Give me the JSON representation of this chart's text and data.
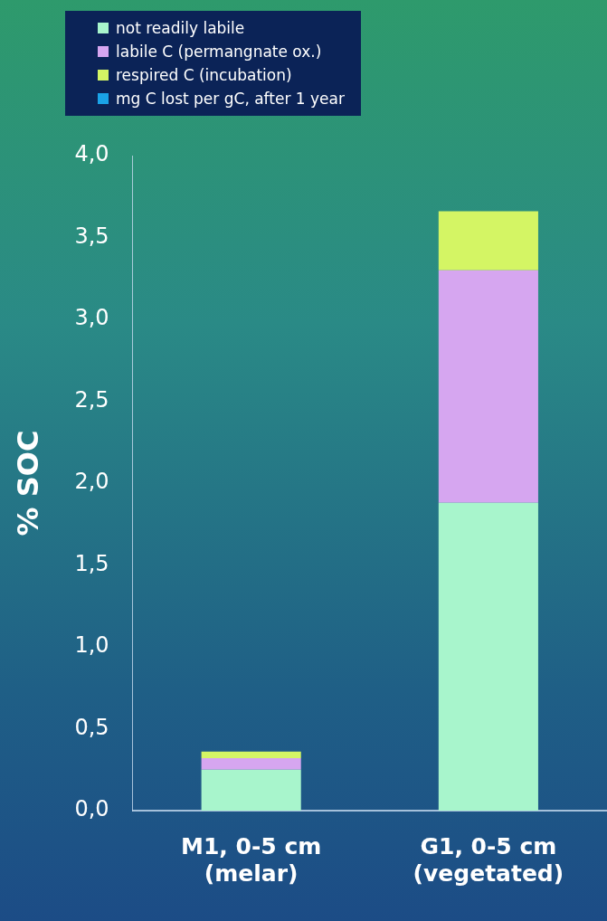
{
  "chart_data": {
    "type": "bar",
    "stacked": true,
    "ylabel": "% SOC",
    "categories": [
      "M1, 0-5 cm\n(melar)",
      "G1, 0-5 cm\n(vegetated)"
    ],
    "series": [
      {
        "name": "not readily labile",
        "color": "#a8f5cc",
        "values": [
          0.25,
          1.88
        ]
      },
      {
        "name": "labile C (permangnate ox.)",
        "color": "#d6a6f0",
        "values": [
          0.07,
          1.42
        ]
      },
      {
        "name": "respired C (incubation)",
        "color": "#d4f564",
        "values": [
          0.04,
          0.36
        ]
      },
      {
        "name": "mg C lost per gC, after 1 year",
        "color": "#1aa3e8",
        "values": [
          null,
          null
        ]
      }
    ],
    "ylim": [
      0,
      4
    ],
    "yticks": [
      {
        "value": 0,
        "label": "0,0"
      },
      {
        "value": 0.5,
        "label": "0,5"
      },
      {
        "value": 1,
        "label": "1,0"
      },
      {
        "value": 1.5,
        "label": "1,5"
      },
      {
        "value": 2,
        "label": "2,0"
      },
      {
        "value": 2.5,
        "label": "2,5"
      },
      {
        "value": 3,
        "label": "3,0"
      },
      {
        "value": 3.5,
        "label": "3,5"
      },
      {
        "value": 4,
        "label": "4,0"
      }
    ],
    "grid": false,
    "legend": "top left"
  }
}
